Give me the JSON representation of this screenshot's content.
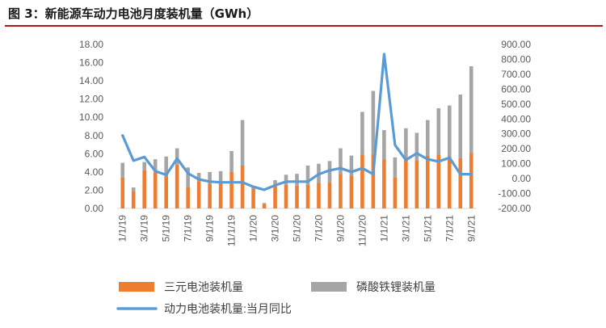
{
  "header": {
    "title": "图 3：新能源车动力电池月度装机量（GWh）"
  },
  "colors": {
    "ncm": "#ed7d31",
    "lfp": "#a5a5a5",
    "yoy": "#5b9bd5",
    "rule": "#b0191c"
  },
  "chart_data": {
    "type": "bar",
    "stacked": true,
    "x": [
      "1/1/19",
      "2/1/19",
      "3/1/19",
      "4/1/19",
      "5/1/19",
      "6/1/19",
      "7/1/19",
      "8/1/19",
      "9/1/19",
      "10/1/19",
      "11/1/19",
      "12/1/19",
      "1/1/20",
      "2/1/20",
      "3/1/20",
      "4/1/20",
      "5/1/20",
      "6/1/20",
      "7/1/20",
      "8/1/20",
      "9/1/20",
      "10/1/20",
      "11/1/20",
      "12/1/20",
      "1/1/21",
      "2/1/21",
      "3/1/21",
      "4/1/21",
      "5/1/21",
      "6/1/21",
      "7/1/21",
      "8/1/21",
      "9/1/21"
    ],
    "x_tick_labels": [
      "1/1/19",
      "3/1/19",
      "5/1/19",
      "7/1/19",
      "9/1/19",
      "11/1/19",
      "1/1/20",
      "3/1/20",
      "5/1/20",
      "7/1/20",
      "9/1/20",
      "11/1/20",
      "1/1/21",
      "3/1/21",
      "5/1/21",
      "7/1/21",
      "9/1/21"
    ],
    "series": [
      {
        "name": "三元电池装机量",
        "axis": "left",
        "values": [
          3.4,
          1.9,
          4.2,
          3.9,
          3.5,
          4.8,
          2.3,
          3.0,
          2.7,
          2.8,
          4.0,
          4.7,
          2.2,
          0.5,
          2.5,
          2.6,
          2.5,
          2.6,
          2.8,
          2.9,
          3.8,
          3.6,
          5.9,
          6.0,
          5.4,
          3.4,
          5.5,
          5.3,
          5.8,
          5.9,
          5.6,
          5.5,
          6.1
        ]
      },
      {
        "name": "磷酸铁锂装机量",
        "axis": "left",
        "values": [
          1.6,
          0.4,
          0.9,
          1.5,
          2.2,
          1.8,
          2.2,
          0.9,
          1.3,
          1.3,
          2.3,
          5.0,
          0.2,
          0.1,
          0.6,
          1.1,
          1.3,
          2.1,
          2.1,
          2.3,
          2.8,
          2.2,
          4.7,
          6.9,
          3.2,
          2.2,
          3.3,
          3.0,
          3.9,
          5.1,
          5.7,
          7.0,
          9.5
        ]
      },
      {
        "name": "动力电池装机量:当月同比",
        "axis": "right",
        "type": "line",
        "values": [
          290,
          120,
          145,
          50,
          25,
          135,
          35,
          -5,
          -20,
          -25,
          -25,
          -25,
          -55,
          -75,
          -45,
          -20,
          -20,
          -20,
          30,
          55,
          70,
          45,
          70,
          30,
          835,
          225,
          125,
          170,
          130,
          115,
          140,
          30,
          30
        ]
      }
    ],
    "y_left": {
      "ticks": [
        "0.00",
        "2.00",
        "4.00",
        "6.00",
        "8.00",
        "10.00",
        "12.00",
        "14.00",
        "16.00",
        "18.00"
      ],
      "min": 0,
      "max": 18
    },
    "y_right": {
      "ticks": [
        "-200.00",
        "-100.00",
        "0.00",
        "100.00",
        "200.00",
        "300.00",
        "400.00",
        "500.00",
        "600.00",
        "700.00",
        "800.00",
        "900.00"
      ],
      "min": -200,
      "max": 900
    },
    "legend": {
      "position": "bottom",
      "items": [
        {
          "label": "三元电池装机量",
          "kind": "bar"
        },
        {
          "label": "磷酸铁锂装机量",
          "kind": "bar"
        },
        {
          "label": "动力电池装机量:当月同比",
          "kind": "line"
        }
      ]
    },
    "grid": false
  }
}
